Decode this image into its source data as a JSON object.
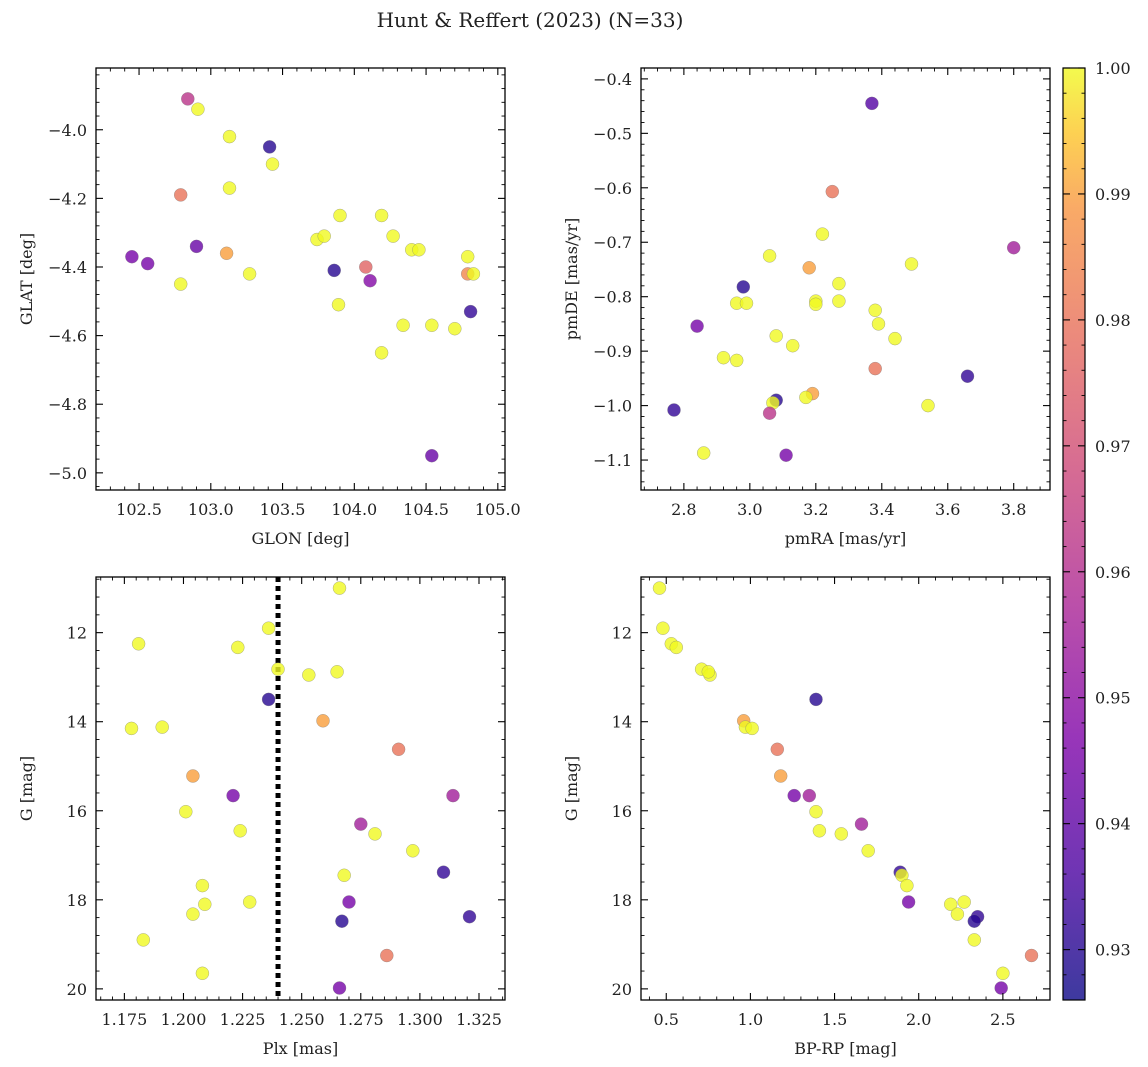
{
  "figure_title": "Hunt & Reffert (2023) (N=33)",
  "colormap": "plasma",
  "chart_data": [
    {
      "type": "scatter",
      "id": "glon-glat",
      "xlabel": "GLON [deg]",
      "ylabel": "GLAT [deg]",
      "xlim": [
        102.2,
        105.05
      ],
      "ylim": [
        -5.05,
        -3.82
      ],
      "xticks": [
        102.5,
        103.0,
        103.5,
        104.0,
        104.5,
        105.0
      ],
      "xtick_labels": [
        "102.5",
        "103.0",
        "103.5",
        "104.0",
        "104.5",
        "105.0"
      ],
      "yticks": [
        -5.0,
        -4.8,
        -4.6,
        -4.4,
        -4.2,
        -4.0
      ],
      "ytick_labels": [
        "−5.0",
        "−4.8",
        "−4.6",
        "−4.4",
        "−4.2",
        "−4.0"
      ],
      "points": [
        {
          "x": 102.84,
          "y": -3.91,
          "c": 0.962
        },
        {
          "x": 102.91,
          "y": -3.94,
          "c": 1.0
        },
        {
          "x": 103.13,
          "y": -4.02,
          "c": 1.0
        },
        {
          "x": 103.41,
          "y": -4.05,
          "c": 0.93
        },
        {
          "x": 103.43,
          "y": -4.1,
          "c": 1.0
        },
        {
          "x": 103.13,
          "y": -4.17,
          "c": 1.0
        },
        {
          "x": 102.79,
          "y": -4.19,
          "c": 0.98
        },
        {
          "x": 103.9,
          "y": -4.25,
          "c": 1.0
        },
        {
          "x": 104.19,
          "y": -4.25,
          "c": 1.0
        },
        {
          "x": 103.74,
          "y": -4.32,
          "c": 1.0
        },
        {
          "x": 103.79,
          "y": -4.31,
          "c": 1.0
        },
        {
          "x": 104.27,
          "y": -4.31,
          "c": 1.0
        },
        {
          "x": 102.9,
          "y": -4.34,
          "c": 0.942
        },
        {
          "x": 104.4,
          "y": -4.35,
          "c": 1.0
        },
        {
          "x": 104.45,
          "y": -4.35,
          "c": 1.0
        },
        {
          "x": 102.45,
          "y": -4.37,
          "c": 0.945
        },
        {
          "x": 102.56,
          "y": -4.39,
          "c": 0.945
        },
        {
          "x": 103.11,
          "y": -4.36,
          "c": 0.99
        },
        {
          "x": 104.79,
          "y": -4.37,
          "c": 1.0
        },
        {
          "x": 104.08,
          "y": -4.4,
          "c": 0.976
        },
        {
          "x": 103.86,
          "y": -4.41,
          "c": 0.93
        },
        {
          "x": 103.27,
          "y": -4.42,
          "c": 1.0
        },
        {
          "x": 104.79,
          "y": -4.42,
          "c": 0.985
        },
        {
          "x": 104.83,
          "y": -4.42,
          "c": 1.0
        },
        {
          "x": 102.79,
          "y": -4.45,
          "c": 1.0
        },
        {
          "x": 104.11,
          "y": -4.44,
          "c": 0.948
        },
        {
          "x": 103.89,
          "y": -4.51,
          "c": 1.0
        },
        {
          "x": 104.81,
          "y": -4.53,
          "c": 0.932
        },
        {
          "x": 104.34,
          "y": -4.57,
          "c": 1.0
        },
        {
          "x": 104.54,
          "y": -4.57,
          "c": 1.0
        },
        {
          "x": 104.7,
          "y": -4.58,
          "c": 1.0
        },
        {
          "x": 104.19,
          "y": -4.65,
          "c": 1.0
        },
        {
          "x": 104.54,
          "y": -4.95,
          "c": 0.942
        }
      ]
    },
    {
      "type": "scatter",
      "id": "pmra-pmde",
      "xlabel": "pmRA [mas/yr]",
      "ylabel": "pmDE [mas/yr]",
      "xlim": [
        2.67,
        3.91
      ],
      "ylim": [
        -1.155,
        -0.38
      ],
      "xticks": [
        2.8,
        3.0,
        3.2,
        3.4,
        3.6,
        3.8
      ],
      "xtick_labels": [
        "2.8",
        "3.0",
        "3.2",
        "3.4",
        "3.6",
        "3.8"
      ],
      "yticks": [
        -1.1,
        -1.0,
        -0.9,
        -0.8,
        -0.7,
        -0.6,
        -0.5,
        -0.4
      ],
      "ytick_labels": [
        "−1.1",
        "−1.0",
        "−0.9",
        "−0.8",
        "−0.7",
        "−0.6",
        "−0.5",
        "−0.4"
      ],
      "points": [
        {
          "x": 3.37,
          "y": -0.445,
          "c": 0.938
        },
        {
          "x": 3.25,
          "y": -0.607,
          "c": 0.98
        },
        {
          "x": 3.22,
          "y": -0.685,
          "c": 1.0
        },
        {
          "x": 3.8,
          "y": -0.71,
          "c": 0.955
        },
        {
          "x": 3.06,
          "y": -0.725,
          "c": 1.0
        },
        {
          "x": 3.49,
          "y": -0.74,
          "c": 1.0
        },
        {
          "x": 3.18,
          "y": -0.747,
          "c": 0.99
        },
        {
          "x": 3.27,
          "y": -0.776,
          "c": 1.0
        },
        {
          "x": 2.98,
          "y": -0.782,
          "c": 0.93
        },
        {
          "x": 3.2,
          "y": -0.808,
          "c": 1.0
        },
        {
          "x": 3.27,
          "y": -0.808,
          "c": 1.0
        },
        {
          "x": 2.96,
          "y": -0.812,
          "c": 1.0
        },
        {
          "x": 2.99,
          "y": -0.812,
          "c": 1.0
        },
        {
          "x": 3.2,
          "y": -0.814,
          "c": 1.0
        },
        {
          "x": 3.38,
          "y": -0.825,
          "c": 1.0
        },
        {
          "x": 3.39,
          "y": -0.85,
          "c": 1.0
        },
        {
          "x": 2.84,
          "y": -0.854,
          "c": 0.945
        },
        {
          "x": 3.08,
          "y": -0.872,
          "c": 1.0
        },
        {
          "x": 3.44,
          "y": -0.877,
          "c": 1.0
        },
        {
          "x": 3.13,
          "y": -0.89,
          "c": 1.0
        },
        {
          "x": 2.92,
          "y": -0.912,
          "c": 1.0
        },
        {
          "x": 2.96,
          "y": -0.917,
          "c": 1.0
        },
        {
          "x": 3.38,
          "y": -0.932,
          "c": 0.98
        },
        {
          "x": 3.66,
          "y": -0.946,
          "c": 0.932
        },
        {
          "x": 3.19,
          "y": -0.978,
          "c": 0.99
        },
        {
          "x": 3.17,
          "y": -0.985,
          "c": 1.0
        },
        {
          "x": 3.08,
          "y": -0.99,
          "c": 0.93
        },
        {
          "x": 3.07,
          "y": -0.995,
          "c": 1.0
        },
        {
          "x": 3.54,
          "y": -1.0,
          "c": 1.0
        },
        {
          "x": 2.77,
          "y": -1.008,
          "c": 0.932
        },
        {
          "x": 3.06,
          "y": -1.014,
          "c": 0.962
        },
        {
          "x": 2.86,
          "y": -1.087,
          "c": 1.0
        },
        {
          "x": 3.11,
          "y": -1.091,
          "c": 0.945
        }
      ]
    },
    {
      "type": "scatter",
      "id": "plx-g",
      "xlabel": "Plx [mas]",
      "ylabel": "G [mag]",
      "xlim": [
        1.163,
        1.336
      ],
      "ylim": [
        20.25,
        10.75
      ],
      "y_inverted": true,
      "vline": {
        "x": 1.24,
        "style": "dotted"
      },
      "xticks": [
        1.175,
        1.2,
        1.225,
        1.25,
        1.275,
        1.3,
        1.325
      ],
      "xtick_labels": [
        "1.175",
        "1.200",
        "1.225",
        "1.250",
        "1.275",
        "1.300",
        "1.325"
      ],
      "yticks": [
        12,
        14,
        16,
        18,
        20
      ],
      "ytick_labels": [
        "12",
        "14",
        "16",
        "18",
        "20"
      ],
      "points": [
        {
          "x": 1.266,
          "y": 11.0,
          "c": 1.0
        },
        {
          "x": 1.236,
          "y": 11.9,
          "c": 1.0
        },
        {
          "x": 1.181,
          "y": 12.25,
          "c": 1.0
        },
        {
          "x": 1.223,
          "y": 12.33,
          "c": 1.0
        },
        {
          "x": 1.24,
          "y": 12.82,
          "c": 1.0
        },
        {
          "x": 1.253,
          "y": 12.95,
          "c": 1.0
        },
        {
          "x": 1.265,
          "y": 12.88,
          "c": 1.0
        },
        {
          "x": 1.236,
          "y": 13.5,
          "c": 0.93
        },
        {
          "x": 1.259,
          "y": 13.98,
          "c": 0.99
        },
        {
          "x": 1.178,
          "y": 14.15,
          "c": 1.0
        },
        {
          "x": 1.191,
          "y": 14.12,
          "c": 1.0
        },
        {
          "x": 1.291,
          "y": 14.62,
          "c": 0.98
        },
        {
          "x": 1.204,
          "y": 15.22,
          "c": 0.99
        },
        {
          "x": 1.221,
          "y": 15.66,
          "c": 0.945
        },
        {
          "x": 1.314,
          "y": 15.66,
          "c": 0.955
        },
        {
          "x": 1.201,
          "y": 16.02,
          "c": 1.0
        },
        {
          "x": 1.275,
          "y": 16.3,
          "c": 0.955
        },
        {
          "x": 1.224,
          "y": 16.45,
          "c": 1.0
        },
        {
          "x": 1.281,
          "y": 16.52,
          "c": 1.0
        },
        {
          "x": 1.297,
          "y": 16.9,
          "c": 1.0
        },
        {
          "x": 1.31,
          "y": 17.38,
          "c": 0.932
        },
        {
          "x": 1.268,
          "y": 17.45,
          "c": 1.0
        },
        {
          "x": 1.208,
          "y": 17.68,
          "c": 1.0
        },
        {
          "x": 1.228,
          "y": 18.05,
          "c": 1.0
        },
        {
          "x": 1.27,
          "y": 18.05,
          "c": 0.945
        },
        {
          "x": 1.209,
          "y": 18.1,
          "c": 1.0
        },
        {
          "x": 1.204,
          "y": 18.32,
          "c": 1.0
        },
        {
          "x": 1.321,
          "y": 18.38,
          "c": 0.932
        },
        {
          "x": 1.267,
          "y": 18.48,
          "c": 0.93
        },
        {
          "x": 1.183,
          "y": 18.9,
          "c": 1.0
        },
        {
          "x": 1.286,
          "y": 19.25,
          "c": 0.98
        },
        {
          "x": 1.208,
          "y": 19.65,
          "c": 1.0
        },
        {
          "x": 1.266,
          "y": 19.98,
          "c": 0.945
        }
      ]
    },
    {
      "type": "scatter",
      "id": "bprp-g",
      "xlabel": "BP-RP [mag]",
      "ylabel": "G [mag]",
      "xlim": [
        0.35,
        2.78
      ],
      "ylim": [
        20.25,
        10.75
      ],
      "y_inverted": true,
      "xticks": [
        0.5,
        1.0,
        1.5,
        2.0,
        2.5
      ],
      "xtick_labels": [
        "0.5",
        "1.0",
        "1.5",
        "2.0",
        "2.5"
      ],
      "yticks": [
        12,
        14,
        16,
        18,
        20
      ],
      "ytick_labels": [
        "12",
        "14",
        "16",
        "18",
        "20"
      ],
      "points": [
        {
          "x": 0.46,
          "y": 11.0,
          "c": 1.0
        },
        {
          "x": 0.48,
          "y": 11.9,
          "c": 1.0
        },
        {
          "x": 0.53,
          "y": 12.25,
          "c": 1.0
        },
        {
          "x": 0.56,
          "y": 12.33,
          "c": 1.0
        },
        {
          "x": 0.71,
          "y": 12.82,
          "c": 1.0
        },
        {
          "x": 0.76,
          "y": 12.95,
          "c": 1.0
        },
        {
          "x": 0.75,
          "y": 12.88,
          "c": 1.0
        },
        {
          "x": 1.39,
          "y": 13.5,
          "c": 0.93
        },
        {
          "x": 0.96,
          "y": 13.98,
          "c": 0.99
        },
        {
          "x": 0.97,
          "y": 14.12,
          "c": 1.0
        },
        {
          "x": 1.01,
          "y": 14.15,
          "c": 1.0
        },
        {
          "x": 1.16,
          "y": 14.62,
          "c": 0.98
        },
        {
          "x": 1.18,
          "y": 15.22,
          "c": 0.99
        },
        {
          "x": 1.26,
          "y": 15.66,
          "c": 0.945
        },
        {
          "x": 1.35,
          "y": 15.66,
          "c": 0.955
        },
        {
          "x": 1.39,
          "y": 16.02,
          "c": 1.0
        },
        {
          "x": 1.66,
          "y": 16.3,
          "c": 0.955
        },
        {
          "x": 1.41,
          "y": 16.45,
          "c": 1.0
        },
        {
          "x": 1.54,
          "y": 16.52,
          "c": 1.0
        },
        {
          "x": 1.7,
          "y": 16.9,
          "c": 1.0
        },
        {
          "x": 1.89,
          "y": 17.38,
          "c": 0.932
        },
        {
          "x": 1.9,
          "y": 17.45,
          "c": 1.0
        },
        {
          "x": 1.93,
          "y": 17.68,
          "c": 1.0
        },
        {
          "x": 2.19,
          "y": 18.1,
          "c": 1.0
        },
        {
          "x": 1.94,
          "y": 18.05,
          "c": 0.945
        },
        {
          "x": 2.27,
          "y": 18.05,
          "c": 1.0
        },
        {
          "x": 2.23,
          "y": 18.32,
          "c": 1.0
        },
        {
          "x": 2.35,
          "y": 18.38,
          "c": 0.932
        },
        {
          "x": 2.33,
          "y": 18.48,
          "c": 0.93
        },
        {
          "x": 2.33,
          "y": 18.9,
          "c": 1.0
        },
        {
          "x": 2.67,
          "y": 19.25,
          "c": 0.98
        },
        {
          "x": 2.5,
          "y": 19.65,
          "c": 1.0
        },
        {
          "x": 2.49,
          "y": 19.98,
          "c": 0.945
        }
      ]
    }
  ],
  "colorbar": {
    "min": 0.926,
    "max": 1.0,
    "ticks": [
      0.93,
      0.94,
      0.95,
      0.96,
      0.97,
      0.98,
      0.99,
      1.0
    ],
    "tick_labels": [
      "0.93",
      "0.94",
      "0.95",
      "0.96",
      "0.97",
      "0.98",
      "0.99",
      "1.00"
    ]
  }
}
